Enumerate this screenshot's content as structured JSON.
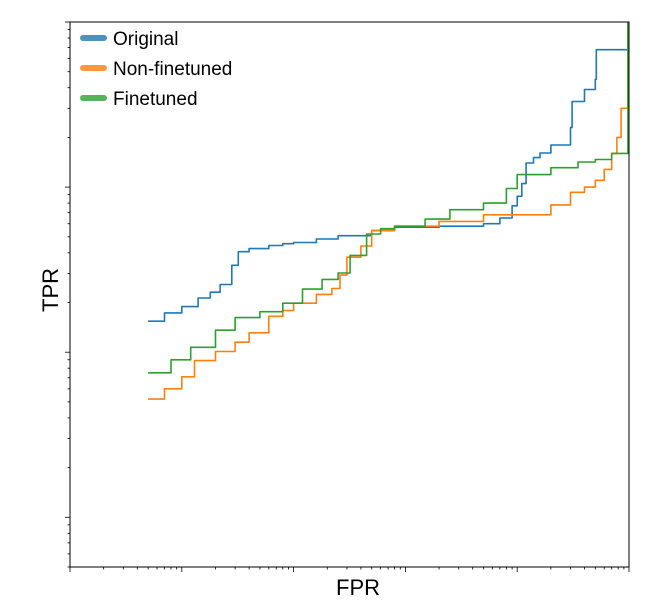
{
  "chart_data": {
    "type": "line",
    "title": "",
    "xlabel": "FPR",
    "ylabel": "TPR",
    "x_scale": "log",
    "y_scale": "log",
    "xlim": [
      1e-05,
      1
    ],
    "ylim": [
      0.0005,
      1
    ],
    "grid": false,
    "legend_position": "top-left",
    "series": [
      {
        "name": "Original",
        "color": "#1f77b4",
        "points": [
          [
            5e-05,
            0.0154
          ],
          [
            7e-05,
            0.0173
          ],
          [
            0.0001,
            0.0189
          ],
          [
            0.00014,
            0.0213
          ],
          [
            0.00018,
            0.0231
          ],
          [
            0.00022,
            0.0257
          ],
          [
            0.00028,
            0.0336
          ],
          [
            0.00032,
            0.0406
          ],
          [
            0.0004,
            0.0424
          ],
          [
            0.0006,
            0.0443
          ],
          [
            0.0008,
            0.0454
          ],
          [
            0.001,
            0.0462
          ],
          [
            0.0016,
            0.0485
          ],
          [
            0.0025,
            0.0508
          ],
          [
            0.003,
            0.0508
          ],
          [
            0.005,
            0.0545
          ],
          [
            0.008,
            0.0572
          ],
          [
            0.01,
            0.0572
          ],
          [
            0.02,
            0.058
          ],
          [
            0.05,
            0.06
          ],
          [
            0.07,
            0.065
          ],
          [
            0.09,
            0.077
          ],
          [
            0.1,
            0.088
          ],
          [
            0.11,
            0.105
          ],
          [
            0.12,
            0.14
          ],
          [
            0.14,
            0.151
          ],
          [
            0.16,
            0.161
          ],
          [
            0.2,
            0.18
          ],
          [
            0.3,
            0.23
          ],
          [
            0.31,
            0.33
          ],
          [
            0.4,
            0.39
          ],
          [
            0.5,
            0.45
          ],
          [
            0.51,
            0.68
          ],
          [
            0.95,
            0.68
          ],
          [
            1.0,
            0.98
          ],
          [
            1.0,
            1.0
          ]
        ]
      },
      {
        "name": "Non-finetuned",
        "color": "#ff7f0e",
        "points": [
          [
            5e-05,
            0.0052
          ],
          [
            7e-05,
            0.006
          ],
          [
            0.0001,
            0.0071
          ],
          [
            0.00013,
            0.0089
          ],
          [
            0.0002,
            0.0101
          ],
          [
            0.0003,
            0.0115
          ],
          [
            0.0004,
            0.0131
          ],
          [
            0.0006,
            0.0165
          ],
          [
            0.0008,
            0.0179
          ],
          [
            0.001,
            0.0198
          ],
          [
            0.0016,
            0.0224
          ],
          [
            0.0022,
            0.0243
          ],
          [
            0.0026,
            0.0293
          ],
          [
            0.003,
            0.0376
          ],
          [
            0.004,
            0.044
          ],
          [
            0.005,
            0.0545
          ],
          [
            0.008,
            0.058
          ],
          [
            0.012,
            0.058
          ],
          [
            0.02,
            0.062
          ],
          [
            0.05,
            0.068
          ],
          [
            0.12,
            0.068
          ],
          [
            0.2,
            0.078
          ],
          [
            0.3,
            0.093
          ],
          [
            0.4,
            0.1
          ],
          [
            0.5,
            0.11
          ],
          [
            0.6,
            0.128
          ],
          [
            0.7,
            0.16
          ],
          [
            0.78,
            0.2
          ],
          [
            0.85,
            0.3
          ],
          [
            1.0,
            0.36
          ],
          [
            1.25,
            0.65
          ],
          [
            1.35,
            0.95
          ],
          [
            1.4,
            1.0
          ]
        ]
      },
      {
        "name": "Finetuned",
        "color": "#2ca02c",
        "points": [
          [
            5e-05,
            0.0075
          ],
          [
            8e-05,
            0.009
          ],
          [
            0.00012,
            0.0107
          ],
          [
            0.0002,
            0.0136
          ],
          [
            0.0003,
            0.0162
          ],
          [
            0.0005,
            0.0176
          ],
          [
            0.0008,
            0.0198
          ],
          [
            0.0012,
            0.0241
          ],
          [
            0.0018,
            0.0276
          ],
          [
            0.0025,
            0.0302
          ],
          [
            0.0032,
            0.0386
          ],
          [
            0.0045,
            0.052
          ],
          [
            0.006,
            0.056
          ],
          [
            0.008,
            0.058
          ],
          [
            0.015,
            0.064
          ],
          [
            0.025,
            0.073
          ],
          [
            0.05,
            0.08
          ],
          [
            0.08,
            0.098
          ],
          [
            0.1,
            0.119
          ],
          [
            0.2,
            0.131
          ],
          [
            0.35,
            0.142
          ],
          [
            0.5,
            0.147
          ],
          [
            0.7,
            0.16
          ],
          [
            1.0,
            0.18
          ],
          [
            1.05,
            0.6
          ],
          [
            1.08,
            0.95
          ],
          [
            1.1,
            1.0
          ]
        ]
      }
    ]
  }
}
